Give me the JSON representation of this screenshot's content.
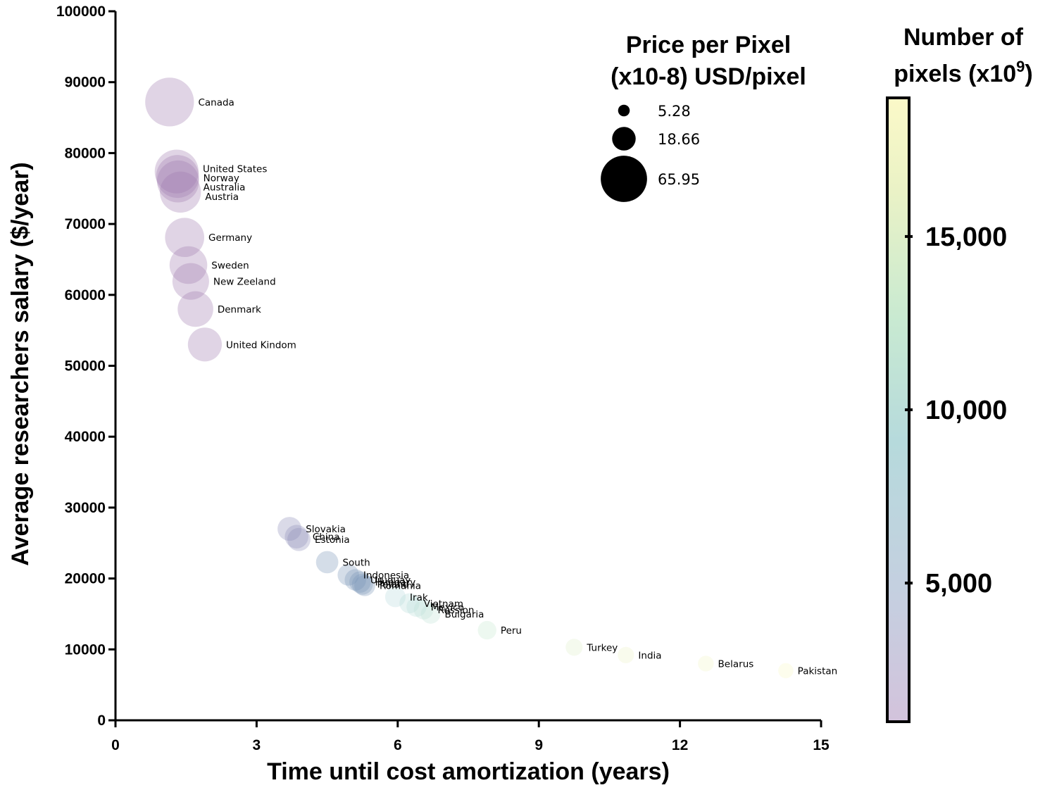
{
  "chart_data": {
    "type": "scatter",
    "xlabel": "Time until cost amortization (years)",
    "ylabel": "Average researchers salary ($/year)",
    "xlim": [
      0,
      15
    ],
    "ylim": [
      0,
      100000
    ],
    "xticks": [
      "0",
      "3",
      "6",
      "9",
      "12",
      "15"
    ],
    "yticks": [
      "0",
      "10000",
      "20000",
      "30000",
      "40000",
      "50000",
      "60000",
      "70000",
      "80000",
      "90000",
      "100000"
    ],
    "size_legend": {
      "title_line1": "Price per Pixel",
      "title_line2": "(x10-8) USD/pixel",
      "entries": [
        {
          "label": "5.28",
          "value": 5.28
        },
        {
          "label": "18.66",
          "value": 18.66
        },
        {
          "label": "65.95",
          "value": 65.95
        }
      ]
    },
    "colorbar": {
      "title_line1": "Number of",
      "title_line2": "pixels (x10",
      "title_sup": "9",
      "title_end": ")",
      "range": [
        1000,
        19000
      ],
      "ticks": [
        {
          "label": "5,000",
          "value": 5000
        },
        {
          "label": "10,000",
          "value": 10000
        },
        {
          "label": "15,000",
          "value": 15000
        }
      ],
      "colors": [
        "#d3c3dc",
        "#c5cfe0",
        "#b6dadc",
        "#c9ead1",
        "#eaf2c6",
        "#fbf9c8"
      ]
    },
    "points": [
      {
        "label": "Canada",
        "x": 1.15,
        "y": 87200,
        "size": 62,
        "pixels": 1400
      },
      {
        "label": "United States",
        "x": 1.3,
        "y": 77400,
        "size": 50,
        "pixels": 1500
      },
      {
        "label": "Norway",
        "x": 1.32,
        "y": 76700,
        "size": 48,
        "pixels": 1500
      },
      {
        "label": "Australia",
        "x": 1.33,
        "y": 76000,
        "size": 46,
        "pixels": 1500
      },
      {
        "label": "Austria",
        "x": 1.38,
        "y": 74500,
        "size": 44,
        "pixels": 1500
      },
      {
        "label": "Germany",
        "x": 1.47,
        "y": 68100,
        "size": 40,
        "pixels": 1600
      },
      {
        "label": "Sweden",
        "x": 1.55,
        "y": 64200,
        "size": 37,
        "pixels": 1600
      },
      {
        "label": "New Zeeland",
        "x": 1.6,
        "y": 61900,
        "size": 35,
        "pixels": 1700
      },
      {
        "label": "Denmark",
        "x": 1.7,
        "y": 58000,
        "size": 33,
        "pixels": 1700
      },
      {
        "label": "United Kindom",
        "x": 1.9,
        "y": 53000,
        "size": 30,
        "pixels": 1800
      },
      {
        "label": "Slovakia",
        "x": 3.7,
        "y": 27000,
        "size": 15,
        "pixels": 4000
      },
      {
        "label": "China",
        "x": 3.85,
        "y": 25900,
        "size": 14.5,
        "pixels": 4300
      },
      {
        "label": "Estonia",
        "x": 3.9,
        "y": 25500,
        "size": 14,
        "pixels": 4400
      },
      {
        "label": "South",
        "x": 4.5,
        "y": 22300,
        "size": 13,
        "pixels": 5200
      },
      {
        "label": "Indonesia",
        "x": 4.95,
        "y": 20500,
        "size": 12,
        "pixels": 6000
      },
      {
        "label": "Uruguay",
        "x": 5.1,
        "y": 19800,
        "size": 12,
        "pixels": 6400
      },
      {
        "label": "Hungary",
        "x": 5.2,
        "y": 19500,
        "size": 12,
        "pixels": 6600
      },
      {
        "label": "Poland",
        "x": 5.25,
        "y": 19200,
        "size": 11.5,
        "pixels": 6800
      },
      {
        "label": "Romania",
        "x": 5.3,
        "y": 19000,
        "size": 11.5,
        "pixels": 7000
      },
      {
        "label": "Irak",
        "x": 5.95,
        "y": 17400,
        "size": 11,
        "pixels": 8200
      },
      {
        "label": "Vietnam",
        "x": 6.25,
        "y": 16500,
        "size": 10.5,
        "pixels": 8800
      },
      {
        "label": "Mexico",
        "x": 6.4,
        "y": 16000,
        "size": 10.5,
        "pixels": 9300
      },
      {
        "label": "Russion",
        "x": 6.55,
        "y": 15600,
        "size": 10,
        "pixels": 9700
      },
      {
        "label": "Bulgaria",
        "x": 6.7,
        "y": 15000,
        "size": 10,
        "pixels": 10000
      },
      {
        "label": "Peru",
        "x": 7.9,
        "y": 12700,
        "size": 9,
        "pixels": 11700
      },
      {
        "label": "Turkey",
        "x": 9.75,
        "y": 10300,
        "size": 7.5,
        "pixels": 14400
      },
      {
        "label": "India",
        "x": 10.85,
        "y": 9200,
        "size": 7,
        "pixels": 15800
      },
      {
        "label": "Belarus",
        "x": 12.55,
        "y": 8000,
        "size": 6.5,
        "pixels": 17500
      },
      {
        "label": "Pakistan",
        "x": 14.25,
        "y": 7000,
        "size": 6,
        "pixels": 18500
      }
    ]
  }
}
